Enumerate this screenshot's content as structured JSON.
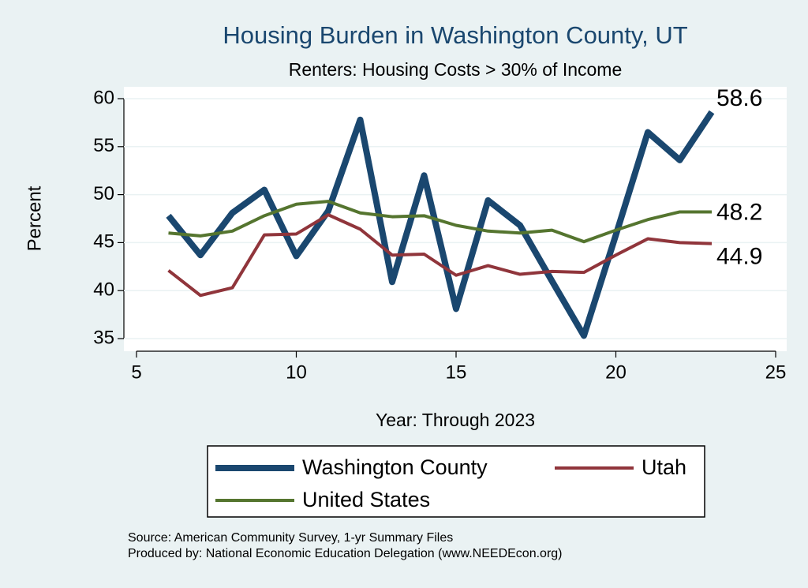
{
  "chart_data": {
    "type": "line",
    "title": "Housing Burden in Washington County, UT",
    "subtitle": "Renters: Housing Costs > 30% of Income",
    "x_label": "Year: Through 2023",
    "y_label": "Percent",
    "x": [
      6,
      7,
      8,
      9,
      10,
      11,
      12,
      13,
      14,
      15,
      16,
      17,
      18,
      19,
      20,
      21,
      22,
      23
    ],
    "series": [
      {
        "name": "Washington County",
        "color": "#1a476f",
        "values": [
          47.8,
          43.7,
          48.1,
          50.5,
          43.6,
          48.3,
          57.8,
          40.9,
          52.0,
          38.1,
          49.4,
          46.8,
          41.0,
          35.3,
          45.8,
          56.5,
          53.6,
          58.6
        ]
      },
      {
        "name": "Utah",
        "color": "#90353b",
        "values": [
          42.1,
          39.5,
          40.3,
          45.8,
          45.9,
          47.9,
          46.4,
          43.7,
          43.8,
          41.6,
          42.6,
          41.7,
          42.0,
          41.9,
          43.7,
          45.4,
          45.0,
          44.9
        ]
      },
      {
        "name": "United States",
        "color": "#55752f",
        "values": [
          46.0,
          45.7,
          46.2,
          47.8,
          49.0,
          49.3,
          48.1,
          47.7,
          47.8,
          46.8,
          46.2,
          46.0,
          46.3,
          45.1,
          46.3,
          47.4,
          48.2,
          48.2
        ]
      }
    ],
    "xlim": [
      5,
      25
    ],
    "xticks": [
      5,
      10,
      15,
      20,
      25
    ],
    "ylim": [
      35,
      60
    ],
    "yticks": [
      35,
      40,
      45,
      50,
      55,
      60
    ],
    "grid": true,
    "notes": [
      "Source: American Community Survey, 1-yr Summary Files",
      "Produced by: National Economic Education Delegation (www.NEEDEcon.org)"
    ]
  }
}
